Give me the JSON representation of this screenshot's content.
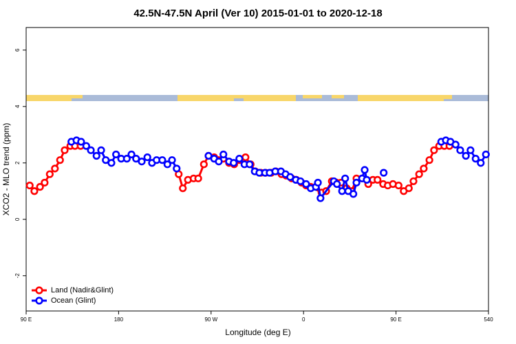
{
  "chart_data": {
    "type": "line",
    "title": "42.5N-47.5N April (Ver 10)   2015-01-01 to 2020-12-18",
    "x_label": "Longitude (deg E)",
    "y_label": "XCO2 - MLO trend (ppm)",
    "xlim": [
      90,
      540
    ],
    "ylim": [
      -3.25,
      6.8
    ],
    "xticks": [
      {
        "value": 90,
        "label": "90 E"
      },
      180,
      {
        "value": 270,
        "label": "90 W"
      },
      {
        "value": 360,
        "label": "0"
      },
      {
        "value": 450,
        "label": "90 E"
      },
      540
    ],
    "yticks": [
      -2,
      0,
      2,
      4,
      6
    ],
    "legend": "bottom-left",
    "series": [
      {
        "name": "Land (Nadir&Glint)",
        "color": "#ff0000",
        "x": [
          93.5,
          98,
          103.5,
          108,
          113,
          118,
          123,
          127.5,
          133,
          137.5,
          143,
          null,
          238.5,
          242.5,
          247.5,
          253,
          257.5,
          263,
          267.5,
          273,
          277.5,
          282,
          287.5,
          292.5,
          297.5,
          303.5,
          308.5,
          313,
          318.5,
          323,
          328.5,
          333,
          338.5,
          343,
          348.5,
          353,
          358,
          362.5,
          367,
          377.5,
          382,
          387.5,
          392,
          396.5,
          402,
          407,
          411.5,
          417,
          423,
          427.5,
          432,
          437.5,
          442,
          447,
          452.5,
          457.5,
          462.5,
          467,
          472.5,
          477,
          482.5,
          487,
          492,
          497,
          502
        ],
        "values": [
          1.2,
          1.0,
          1.15,
          1.3,
          1.6,
          1.8,
          2.1,
          2.45,
          2.6,
          2.6,
          2.6,
          null,
          1.6,
          1.1,
          1.4,
          1.45,
          1.45,
          1.95,
          2.25,
          2.2,
          2.1,
          2.15,
          2.0,
          1.95,
          2.1,
          2.2,
          1.95,
          1.7,
          1.65,
          1.65,
          1.65,
          1.7,
          1.6,
          1.55,
          1.45,
          1.4,
          1.3,
          1.2,
          1.15,
          0.95,
          1.0,
          1.35,
          1.3,
          1.3,
          1.1,
          1.0,
          1.45,
          1.45,
          1.25,
          1.4,
          1.4,
          1.25,
          1.2,
          1.25,
          1.2,
          1.0,
          1.1,
          1.35,
          1.6,
          1.8,
          2.1,
          2.45,
          2.6,
          2.6,
          2.6
        ]
      },
      {
        "name": "Ocean (Glint)",
        "color": "#0000ff",
        "x": [
          134,
          139,
          143.5,
          148.5,
          153,
          158.5,
          163,
          167.5,
          173,
          177.5,
          182.5,
          188,
          192.5,
          197,
          202.5,
          208,
          212.5,
          217,
          222.5,
          227.5,
          232,
          236.5,
          null,
          267.5,
          273,
          277.5,
          282,
          287.5,
          292,
          297.5,
          302.5,
          307.5,
          312.5,
          317,
          322.5,
          327,
          332.5,
          338,
          342.5,
          347,
          352.5,
          357,
          362.5,
          367,
          372,
          374,
          376.5,
          389.5,
          392.5,
          397.5,
          400.5,
          403.5,
          408.5,
          411.5,
          417,
          419.5,
          421.5,
          null,
          438,
          null,
          494,
          498.5,
          503,
          508,
          512.5,
          518,
          522.5,
          527.5,
          532.5,
          537.5
        ],
        "values": [
          2.75,
          2.8,
          2.75,
          2.6,
          2.45,
          2.25,
          2.45,
          2.1,
          2.0,
          2.3,
          2.15,
          2.15,
          2.3,
          2.15,
          2.05,
          2.2,
          2.0,
          2.1,
          2.1,
          1.95,
          2.1,
          1.8,
          null,
          2.25,
          2.15,
          2.05,
          2.3,
          2.05,
          2.0,
          2.15,
          1.95,
          1.95,
          1.7,
          1.65,
          1.65,
          1.65,
          1.7,
          1.7,
          1.6,
          1.5,
          1.4,
          1.35,
          1.25,
          1.1,
          1.15,
          1.3,
          0.75,
          1.35,
          1.25,
          1.0,
          1.45,
          1.0,
          0.9,
          1.3,
          1.45,
          1.75,
          1.4,
          null,
          1.65,
          null,
          2.75,
          2.8,
          2.75,
          2.65,
          2.45,
          2.25,
          2.45,
          2.15,
          2.0,
          2.3
        ]
      }
    ]
  }
}
